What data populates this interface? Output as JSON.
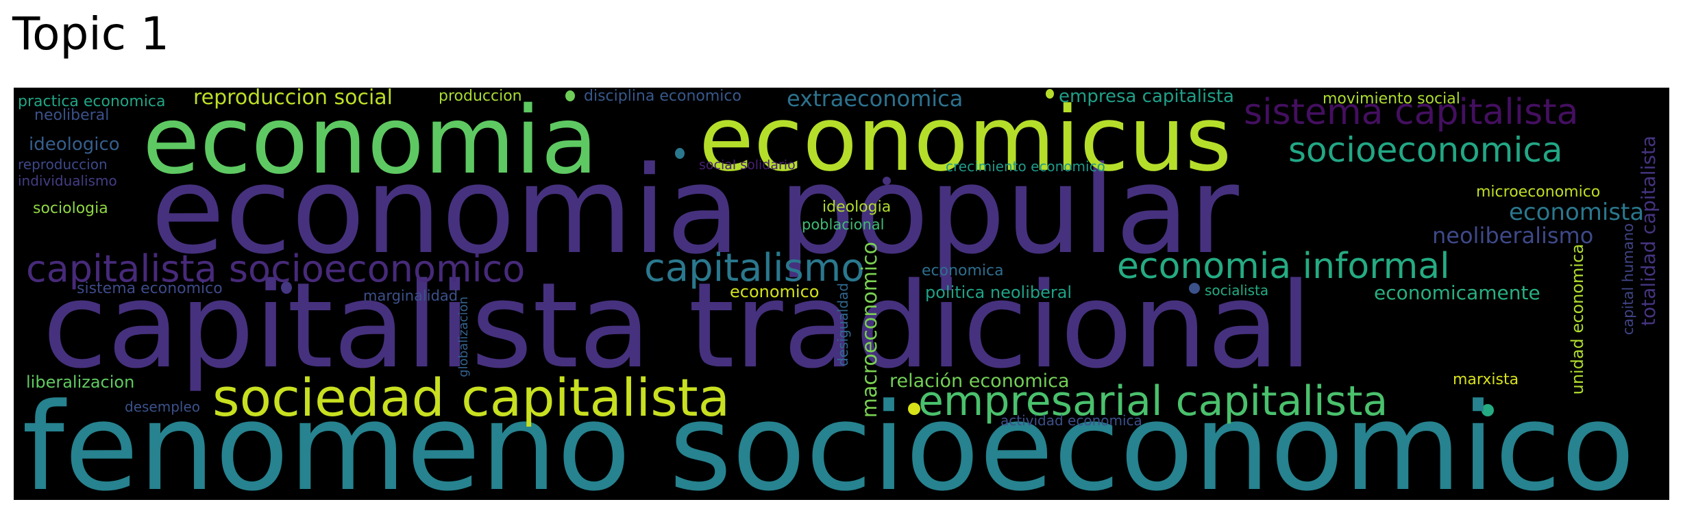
{
  "title": "Topic 1",
  "words": [
    {
      "key": "fenomeno_socioeconomico",
      "text": "fenomeno socioeconomico",
      "color": "#26838f"
    },
    {
      "key": "capitalista_tradicional",
      "text": "capitalista tradicional",
      "color": "#46317e"
    },
    {
      "key": "economia_popular",
      "text": "economia popular",
      "color": "#46317e"
    },
    {
      "key": "economia",
      "text": "economia",
      "color": "#5ec962"
    },
    {
      "key": "economicus",
      "text": "economicus",
      "color": "#b5de2b"
    },
    {
      "key": "sociedad_capitalista",
      "text": "sociedad capitalista",
      "color": "#c8e020"
    },
    {
      "key": "empresarial_capitalista",
      "text": "empresarial capitalista",
      "color": "#4ac16d"
    },
    {
      "key": "capitalista_socioeconomico",
      "text": "capitalista socioeconomico",
      "color": "#472a7a"
    },
    {
      "key": "capitalismo",
      "text": "capitalismo",
      "color": "#2a788e"
    },
    {
      "key": "economia_informal",
      "text": "economia informal",
      "color": "#25ab82"
    },
    {
      "key": "sistema_capitalista",
      "text": "sistema capitalista",
      "color": "#440f60"
    },
    {
      "key": "socioeconomica",
      "text": "socioeconomica",
      "color": "#22a785"
    },
    {
      "key": "economista",
      "text": "economista",
      "color": "#2a788e"
    },
    {
      "key": "neoliberalismo",
      "text": "neoliberalismo",
      "color": "#3e4989"
    },
    {
      "key": "reproduccion_social",
      "text": "reproduccion social",
      "color": "#bddf26"
    },
    {
      "key": "extraeconomica",
      "text": "extraeconomica",
      "color": "#2c728e"
    },
    {
      "key": "empresa_capitalista",
      "text": "empresa capitalista",
      "color": "#1fa088"
    },
    {
      "key": "movimiento_social",
      "text": "movimiento social",
      "color": "#addc30"
    },
    {
      "key": "practica_economica",
      "text": "practica economica",
      "color": "#21a685"
    },
    {
      "key": "neoliberal",
      "text": "neoliberal",
      "color": "#3b518b"
    },
    {
      "key": "produccion",
      "text": "produccion",
      "color": "#a8db34"
    },
    {
      "key": "disciplina_economico",
      "text": "disciplina economico",
      "color": "#38588c"
    },
    {
      "key": "ideologico",
      "text": "ideologico",
      "color": "#355f8d"
    },
    {
      "key": "reproduccion",
      "text": "reproduccion",
      "color": "#3e4989"
    },
    {
      "key": "individualismo",
      "text": "individualismo",
      "color": "#433e85"
    },
    {
      "key": "social_solidario",
      "text": "social solidario",
      "color": "#482173"
    },
    {
      "key": "crecimiento_economico",
      "text": "crecimiento economico",
      "color": "#1f9a8a"
    },
    {
      "key": "microeconomico",
      "text": "microeconomico",
      "color": "#c0df25"
    },
    {
      "key": "sociologia",
      "text": "sociologia",
      "color": "#90d743"
    },
    {
      "key": "ideologia",
      "text": "ideologia",
      "color": "#b0dd2f"
    },
    {
      "key": "poblacional",
      "text": "poblacional",
      "color": "#3fbc73"
    },
    {
      "key": "sistema_economico",
      "text": "sistema economico",
      "color": "#3e4a89"
    },
    {
      "key": "marginalidad",
      "text": "marginalidad",
      "color": "#3b518b"
    },
    {
      "key": "economico",
      "text": "economico",
      "color": "#d2e21b"
    },
    {
      "key": "economica",
      "text": "economica",
      "color": "#2e6e8e"
    },
    {
      "key": "politica_neoliberal",
      "text": "politica neoliberal",
      "color": "#1fa287"
    },
    {
      "key": "socialista",
      "text": "socialista",
      "color": "#25ac82"
    },
    {
      "key": "economicamente",
      "text": "economicamente",
      "color": "#29af7f"
    },
    {
      "key": "liberalizacion",
      "text": "liberalizacion",
      "color": "#60ca60"
    },
    {
      "key": "desempleo",
      "text": "desempleo",
      "color": "#3b528b"
    },
    {
      "key": "relacion_economica",
      "text": "relación economica",
      "color": "#73d056"
    },
    {
      "key": "marxista",
      "text": "marxista",
      "color": "#d8e219"
    },
    {
      "key": "actividad_economica",
      "text": "actividad economica",
      "color": "#3c4f8a"
    },
    {
      "key": "macroeconomico",
      "text": "macroeconomico",
      "color": "#7ad151"
    },
    {
      "key": "desigualdad",
      "text": "desigualdad",
      "color": "#31678e"
    },
    {
      "key": "globalizacion",
      "text": "globalizacion",
      "color": "#33628d"
    },
    {
      "key": "unidad_economica",
      "text": "unidad economica",
      "color": "#b0dd2f"
    },
    {
      "key": "capital_humano",
      "text": "capital humano",
      "color": "#414487"
    },
    {
      "key": "totalidad_capitalista",
      "text": "totalidad capitalista",
      "color": "#463480"
    }
  ],
  "dot_colors": [
    "#6ece58",
    "#b5de2b",
    "#d8e219",
    "#453781",
    "#3b528b",
    "#25ab82",
    "#2a788e",
    "#46327e"
  ]
}
